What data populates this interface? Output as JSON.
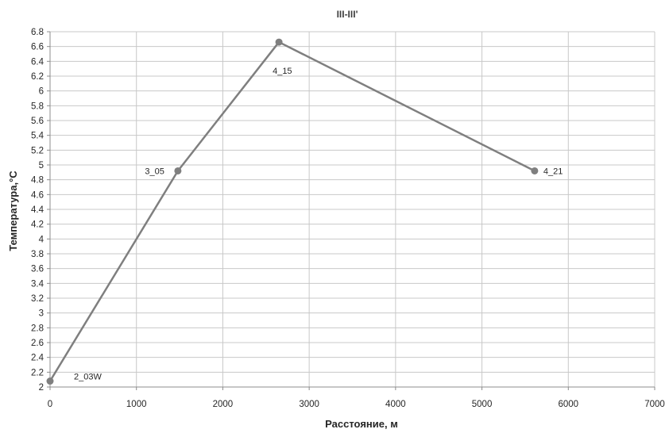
{
  "chart_data": {
    "type": "line",
    "title": "III-III'",
    "xlabel": "Расстояние, м",
    "ylabel": "Температура,°С",
    "xlim": [
      0,
      7000
    ],
    "ylim": [
      2,
      6.8
    ],
    "x_ticks": [
      "0",
      "1000",
      "2000",
      "3000",
      "4000",
      "5000",
      "6000",
      "7000"
    ],
    "y_ticks": [
      "2",
      "2.2",
      "2.4",
      "2.6",
      "2.8",
      "3",
      "3.2",
      "3.4",
      "3.6",
      "3.8",
      "4",
      "4.2",
      "4.4",
      "4.6",
      "4.8",
      "5",
      "5.2",
      "5.4",
      "5.6",
      "5.8",
      "6",
      "6.2",
      "6.4",
      "6.6",
      "6.8"
    ],
    "grid": true,
    "legend": "none",
    "series": [
      {
        "color": "#7f7f7f",
        "points": [
          {
            "x": 0,
            "y": 2.08,
            "label": "2_03W"
          },
          {
            "x": 1480,
            "y": 4.92,
            "label": "3_05"
          },
          {
            "x": 2650,
            "y": 6.66,
            "label": "4_15"
          },
          {
            "x": 5610,
            "y": 4.92,
            "label": "4_21"
          }
        ]
      }
    ]
  }
}
